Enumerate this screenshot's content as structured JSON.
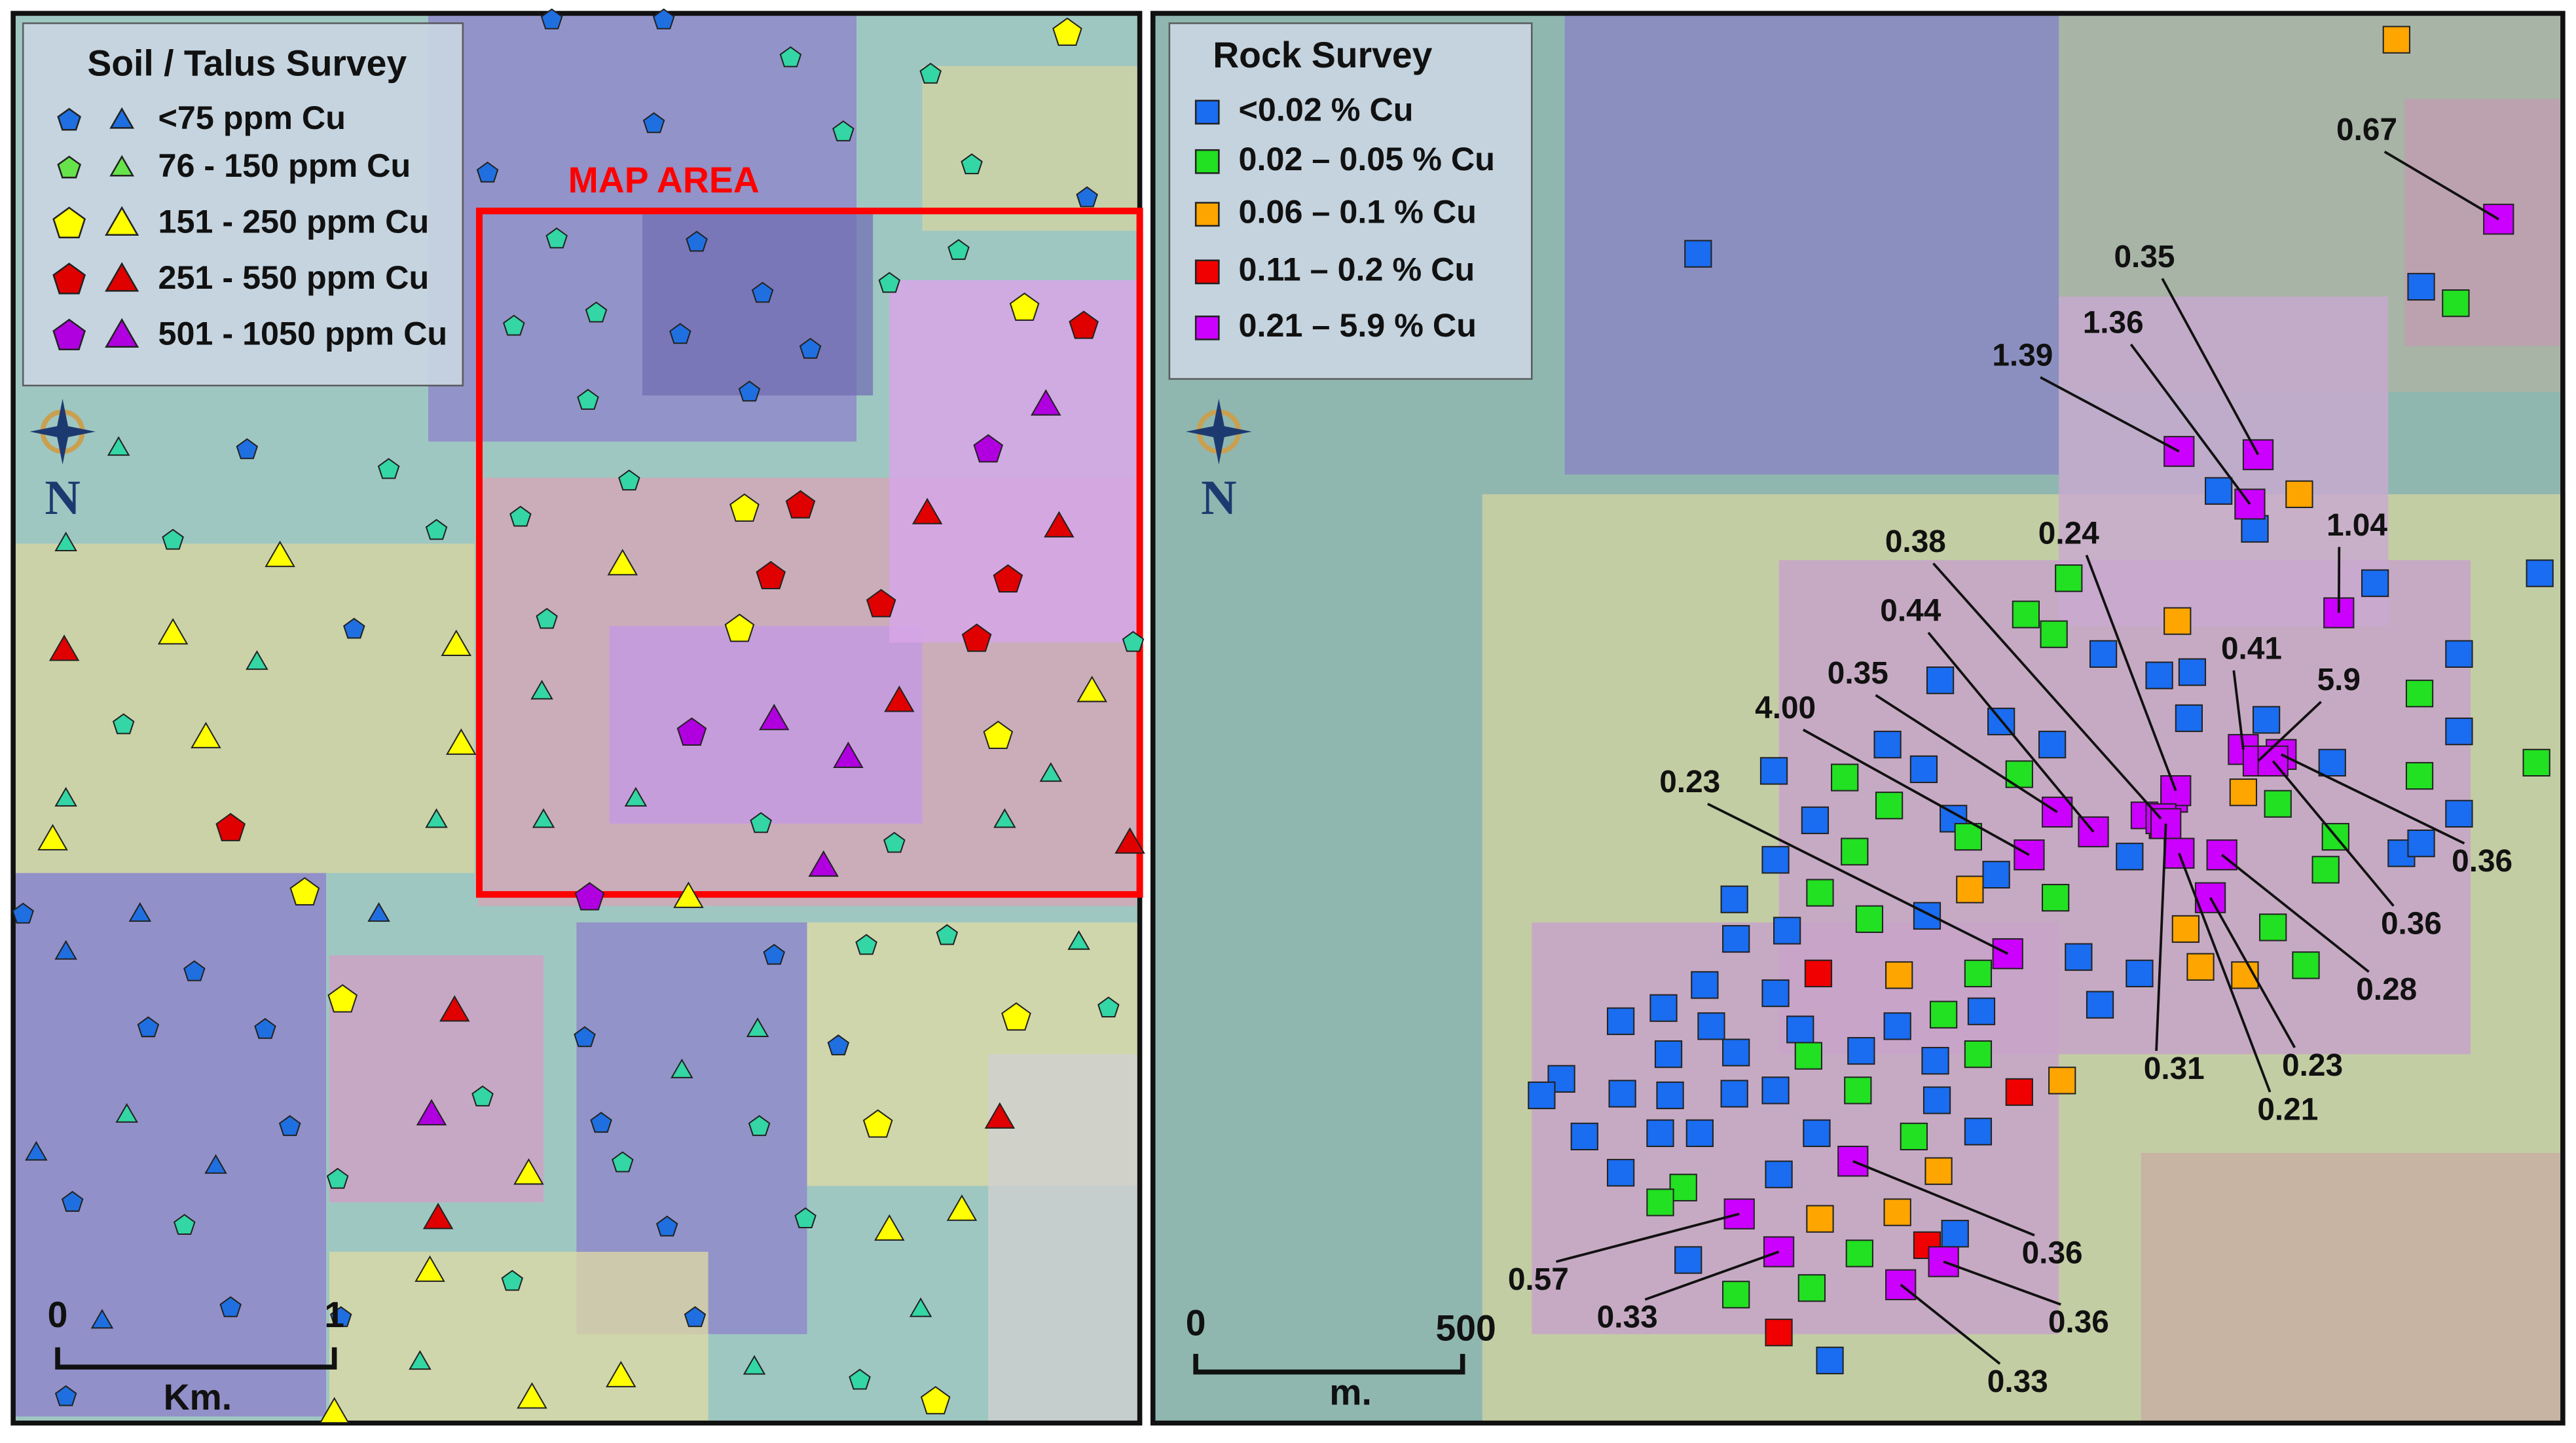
{
  "soil_panel": {
    "legend": {
      "title": "Soil / Talus Survey",
      "items": [
        {
          "label": "<75 ppm Cu",
          "color": "#1f6fe0"
        },
        {
          "label": "76 - 150 ppm Cu",
          "color": "#66e34a"
        },
        {
          "label": "151 - 250 ppm Cu",
          "color": "#ffff00"
        },
        {
          "label": "251 - 550 ppm Cu",
          "color": "#e00000"
        },
        {
          "label": "501 - 1050 ppm Cu",
          "color": "#b000e0"
        }
      ]
    },
    "map_area_label": "MAP AREA",
    "north": "N",
    "scale": {
      "start": "0",
      "end": "1",
      "unit": "Km."
    }
  },
  "rock_panel": {
    "legend": {
      "title": "Rock Survey",
      "items": [
        {
          "label": "<0.02 % Cu",
          "color": "#1a6cf0"
        },
        {
          "label": "0.02 – 0.05 % Cu",
          "color": "#22e022"
        },
        {
          "label": "0.06 – 0.1 % Cu",
          "color": "#ffa500"
        },
        {
          "label": "0.11 – 0.2 % Cu",
          "color": "#f00000"
        },
        {
          "label": "0.21 – 5.9 % Cu",
          "color": "#cc00ff"
        }
      ]
    },
    "north": "N",
    "scale": {
      "start": "0",
      "end": "500",
      "unit": "m."
    },
    "sample_labels": [
      "0.67",
      "0.35",
      "1.36",
      "1.39",
      "1.04",
      "0.24",
      "0.38",
      "0.41",
      "5.9",
      "0.44",
      "0.35",
      "4.00",
      "0.23",
      "0.36",
      "0.36",
      "0.28",
      "0.23",
      "0.31",
      "0.21",
      "0.36",
      "0.57",
      "0.36",
      "0.33",
      "0.33"
    ]
  }
}
